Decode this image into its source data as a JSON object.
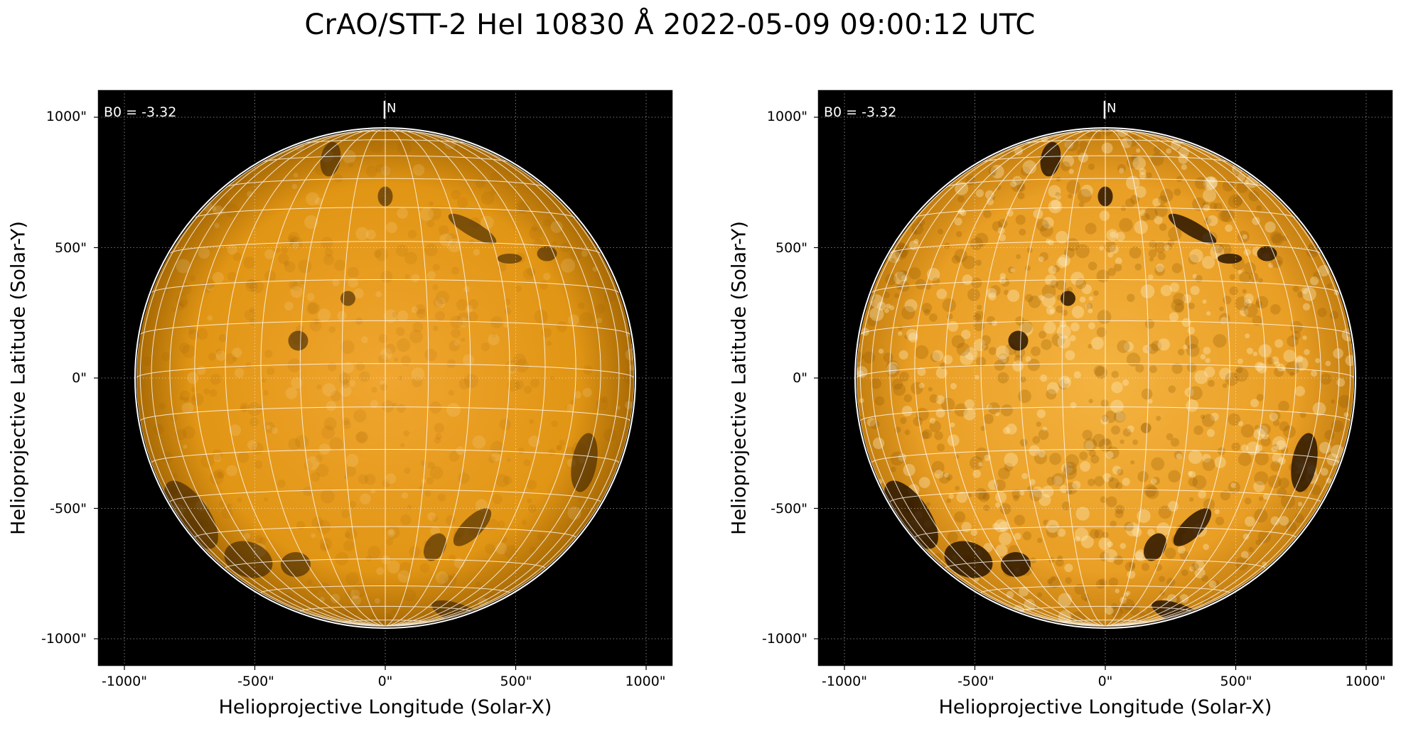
{
  "title": "CrAO/STT-2 HeI 10830 Å 2022-05-09 09:00:12 UTC",
  "colors": {
    "background": "#000000",
    "disk_center": "#f0a630",
    "disk_limb": "#a86a05",
    "grid": "#ffffff",
    "feature_dark": "#2a1500"
  },
  "panels": [
    {
      "id": "left",
      "b0_label": "B0 = -3.32",
      "north_label": "N",
      "xlabel": "Helioprojective Longitude (Solar-X)",
      "ylabel": "Helioprojective Latitude (Solar-Y)",
      "xticks": [
        "-1000\"",
        "-500\"",
        "0\"",
        "500\"",
        "1000\""
      ],
      "yticks": [
        "1000\"",
        "500\"",
        "0\"",
        "-500\"",
        "-1000\""
      ],
      "contrast": "normal"
    },
    {
      "id": "right",
      "b0_label": "B0 = -3.32",
      "north_label": "N",
      "xlabel": "Helioprojective Longitude (Solar-X)",
      "ylabel": "Helioprojective Latitude (Solar-Y)",
      "xticks": [
        "-1000\"",
        "-500\"",
        "0\"",
        "500\"",
        "1000\""
      ],
      "yticks": [
        "1000\"",
        "500\"",
        "0\"",
        "-500\"",
        "-1000\""
      ],
      "contrast": "enhanced"
    }
  ]
}
